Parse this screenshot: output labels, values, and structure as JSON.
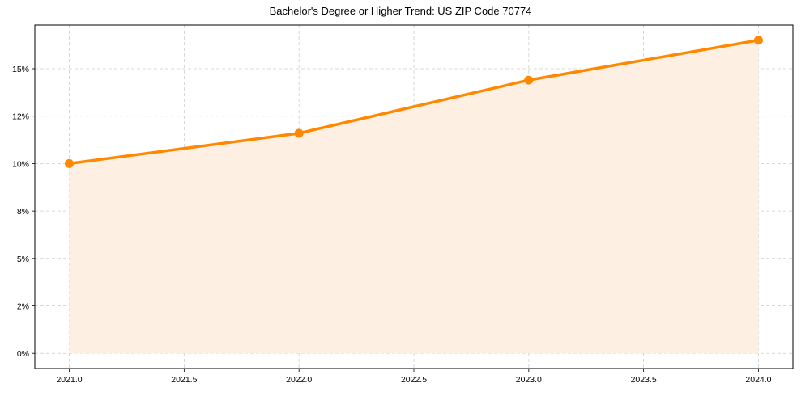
{
  "chart_data": {
    "type": "line",
    "title": "Bachelor's Degree or Higher Trend: US ZIP Code 70774",
    "xlabel": "",
    "ylabel": "",
    "x": [
      2021,
      2022,
      2023,
      2024
    ],
    "series": [
      {
        "name": "Bachelor's Degree or Higher",
        "values": [
          10.0,
          11.6,
          14.4,
          16.5
        ],
        "color": "#ff8800",
        "fill": "#fdf0e2"
      }
    ],
    "xticks": [
      "2021.0",
      "2021.5",
      "2022.0",
      "2022.5",
      "2023.0",
      "2023.5",
      "2024.0"
    ],
    "xtick_values": [
      2021.0,
      2021.5,
      2022.0,
      2022.5,
      2023.0,
      2023.5,
      2024.0
    ],
    "yticks": [
      "0%",
      "2%",
      "5%",
      "8%",
      "10%",
      "12%",
      "15%"
    ],
    "ytick_values": [
      0,
      2.5,
      5,
      7.5,
      10,
      12.5,
      15
    ],
    "xlim": [
      2020.85,
      2024.15
    ],
    "ylim": [
      -0.8,
      17.3
    ],
    "grid": true,
    "legend": "none"
  }
}
